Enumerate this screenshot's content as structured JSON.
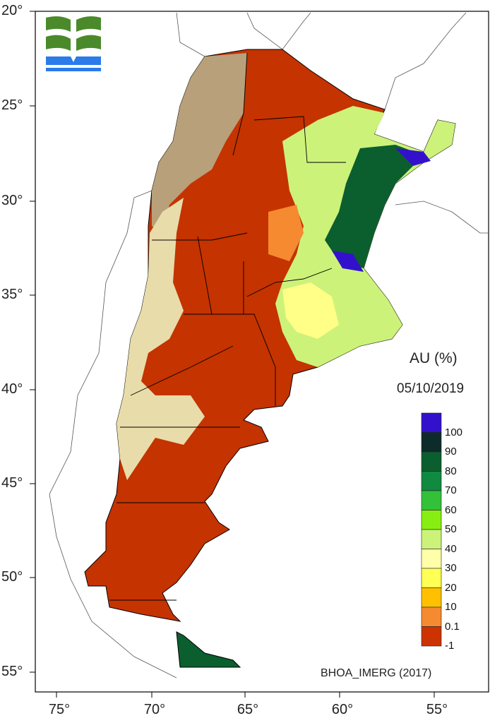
{
  "map": {
    "variable_title": "AU (%)",
    "date": "05/10/2019",
    "source": "BHOA_IMERG (2017)",
    "logo": "INTA water/soil logo",
    "lat_ticks": [
      "20°",
      "25°",
      "30°",
      "35°",
      "40°",
      "45°",
      "50°",
      "55°"
    ],
    "lon_ticks": [
      "75°",
      "70°",
      "65°",
      "60°",
      "55°"
    ]
  },
  "legend": {
    "labels": [
      "100",
      "90",
      "80",
      "70",
      "60",
      "50",
      "40",
      "30",
      "20",
      "10",
      "0.1",
      "-1"
    ],
    "colors": [
      "#3311cc",
      "#0d2b2b",
      "#0b5e2e",
      "#0f8a40",
      "#33c13a",
      "#88ee11",
      "#ccf27a",
      "#ffffaa",
      "#ffff55",
      "#ffc000",
      "#f58a30",
      "#cc3300"
    ]
  },
  "colors": {
    "dry": "#c43300",
    "andes": "#b8a07a",
    "andes_light": "#e8dcaa",
    "wet_dark": "#0b5e2e"
  }
}
